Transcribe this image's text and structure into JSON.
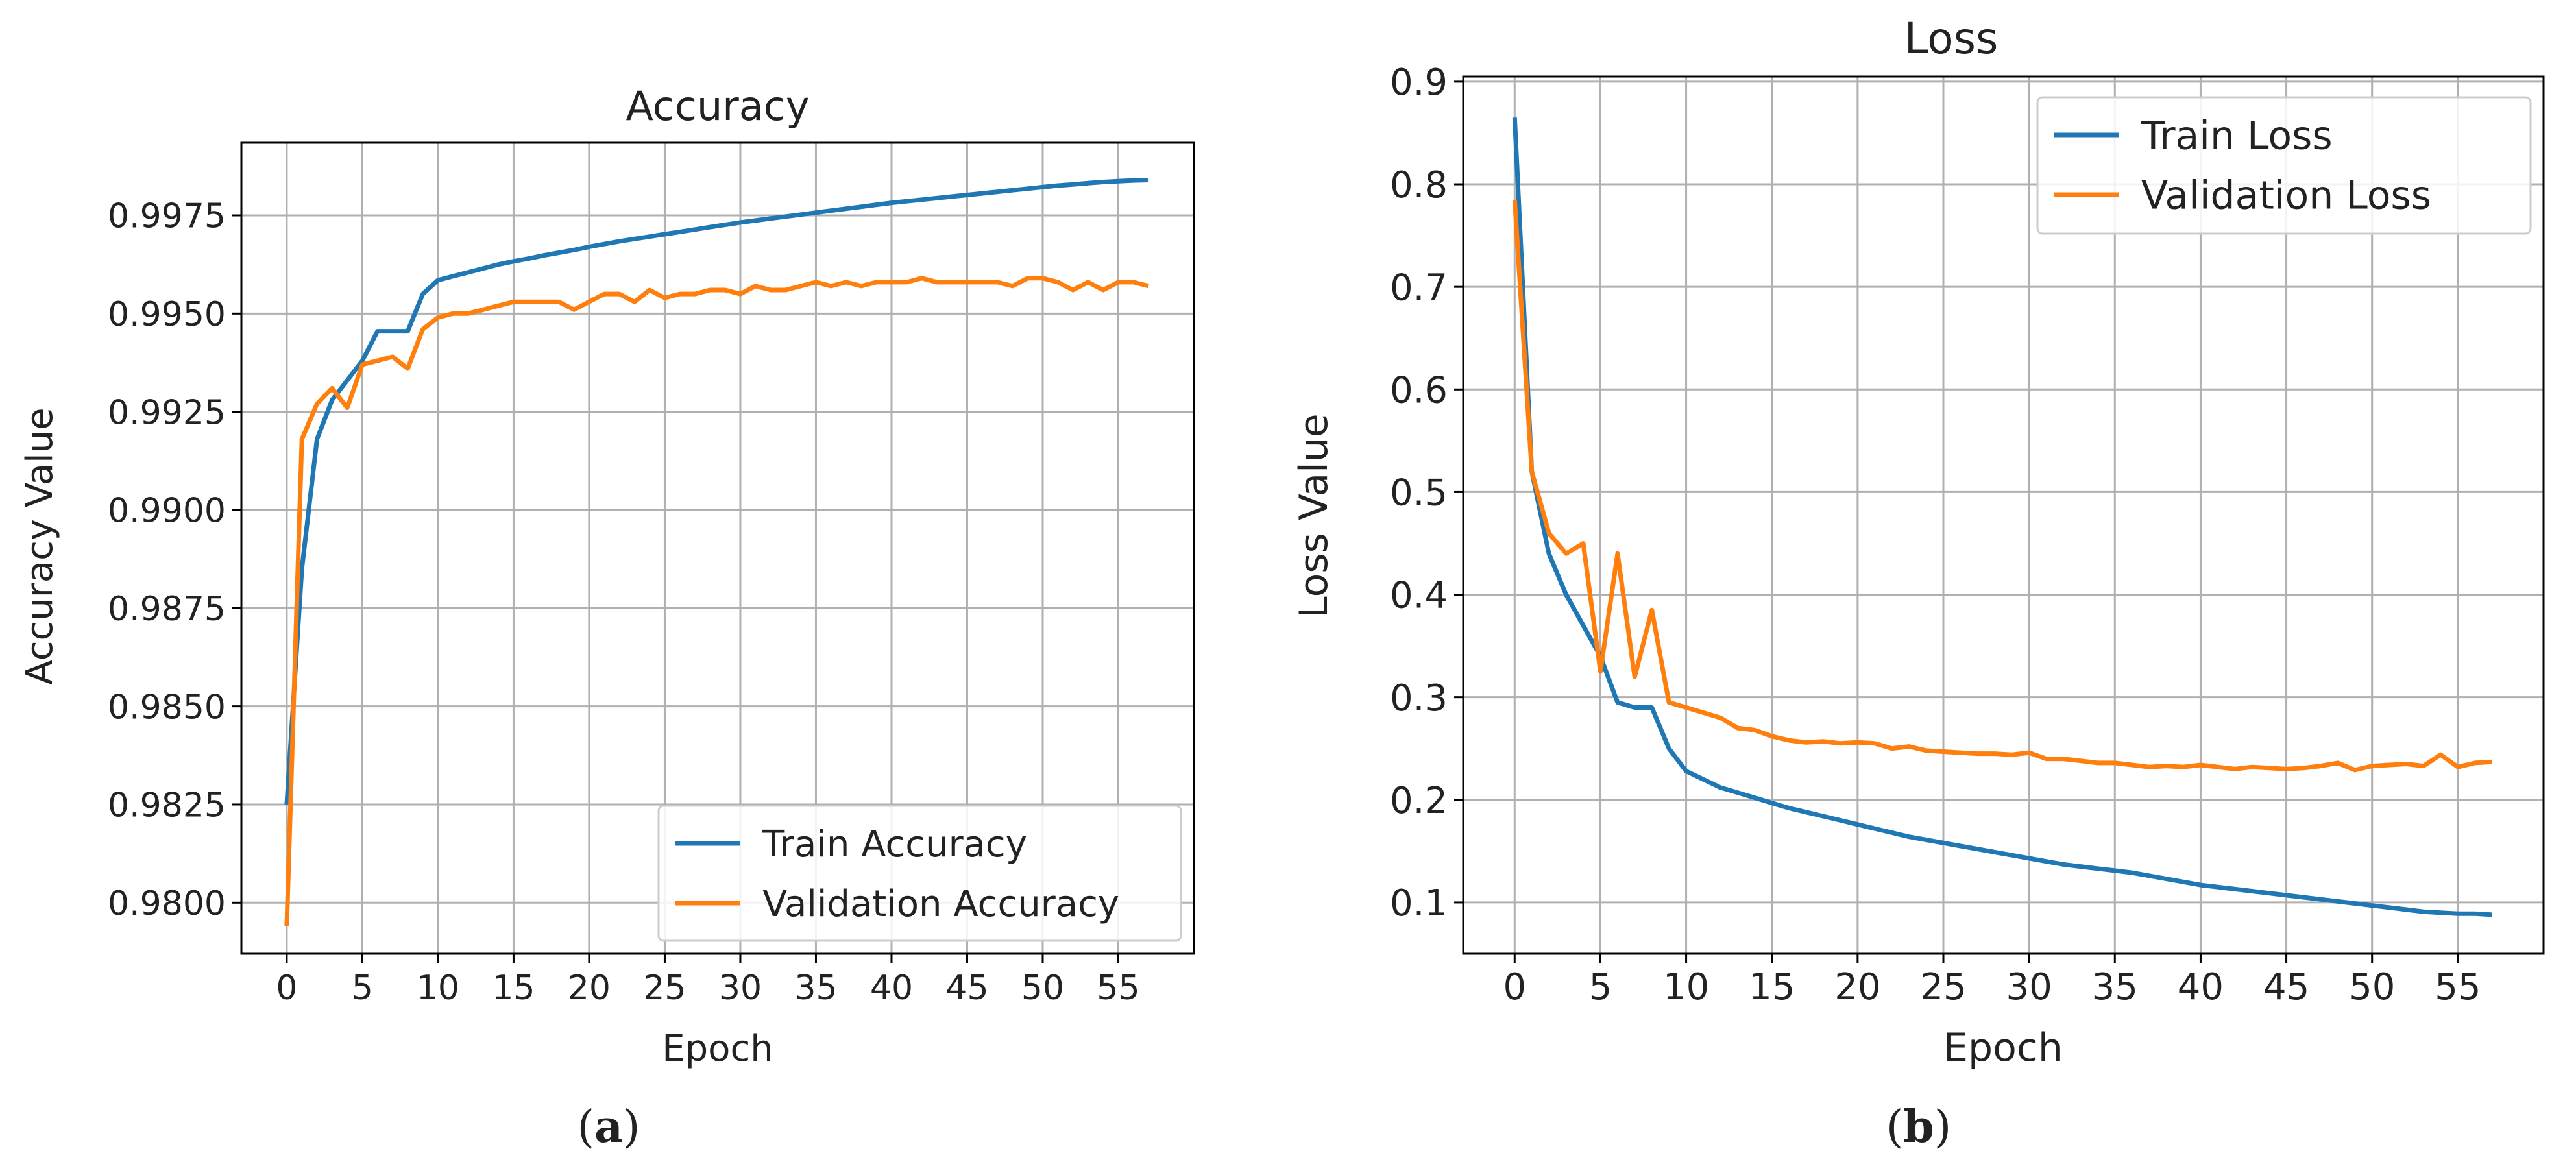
{
  "colors": {
    "train": "#1f77b4",
    "validation": "#ff7f0e",
    "grid": "#b0b0b0",
    "axis": "#000000",
    "legend_border": "#cccccc"
  },
  "chart_data": [
    {
      "type": "line",
      "title": "Accuracy",
      "xlabel": "Epoch",
      "ylabel": "Accuracy Value",
      "caption_letter": "a",
      "xlim": [
        -3,
        60
      ],
      "ylim": [
        0.9787,
        0.99935
      ],
      "xticks": [
        0,
        5,
        10,
        15,
        20,
        25,
        30,
        35,
        40,
        45,
        50,
        55
      ],
      "yticks": [
        0.98,
        0.9825,
        0.985,
        0.9875,
        0.99,
        0.9925,
        0.995,
        0.9975
      ],
      "ytick_labels": [
        "0.9800",
        "0.9825",
        "0.9850",
        "0.9875",
        "0.9900",
        "0.9925",
        "0.9950",
        "0.9975"
      ],
      "grid": true,
      "legend_position": "lower-right",
      "series": [
        {
          "name": "Train Accuracy",
          "color_key": "train",
          "x": [
            0,
            1,
            2,
            3,
            4,
            5,
            6,
            7,
            8,
            9,
            10,
            11,
            12,
            13,
            14,
            15,
            16,
            17,
            18,
            19,
            20,
            21,
            22,
            23,
            24,
            25,
            26,
            27,
            28,
            29,
            30,
            31,
            32,
            33,
            34,
            35,
            36,
            37,
            38,
            39,
            40,
            41,
            42,
            43,
            44,
            45,
            46,
            47,
            48,
            49,
            50,
            51,
            52,
            53,
            54,
            55,
            56,
            57
          ],
          "y": [
            0.9825,
            0.9885,
            0.9918,
            0.9928,
            0.9933,
            0.9938,
            0.99455,
            0.99455,
            0.99455,
            0.9955,
            0.99585,
            0.99595,
            0.99605,
            0.99615,
            0.99625,
            0.99633,
            0.9964,
            0.99648,
            0.99655,
            0.99662,
            0.9967,
            0.99677,
            0.99684,
            0.9969,
            0.99696,
            0.99702,
            0.99708,
            0.99714,
            0.9972,
            0.99726,
            0.99732,
            0.99737,
            0.99742,
            0.99747,
            0.99752,
            0.99757,
            0.99762,
            0.99767,
            0.99772,
            0.99777,
            0.99782,
            0.99786,
            0.9979,
            0.99794,
            0.99798,
            0.99802,
            0.99806,
            0.9981,
            0.99814,
            0.99818,
            0.99822,
            0.99826,
            0.99829,
            0.99832,
            0.99835,
            0.99837,
            0.99839,
            0.9984
          ]
        },
        {
          "name": "Validation Accuracy",
          "color_key": "validation",
          "x": [
            0,
            1,
            2,
            3,
            4,
            5,
            6,
            7,
            8,
            9,
            10,
            11,
            12,
            13,
            14,
            15,
            16,
            17,
            18,
            19,
            20,
            21,
            22,
            23,
            24,
            25,
            26,
            27,
            28,
            29,
            30,
            31,
            32,
            33,
            34,
            35,
            36,
            37,
            38,
            39,
            40,
            41,
            42,
            43,
            44,
            45,
            46,
            47,
            48,
            49,
            50,
            51,
            52,
            53,
            54,
            55,
            56,
            57
          ],
          "y": [
            0.9794,
            0.9918,
            0.9927,
            0.9931,
            0.9926,
            0.9937,
            0.9938,
            0.9939,
            0.9936,
            0.9946,
            0.9949,
            0.995,
            0.995,
            0.9951,
            0.9952,
            0.9953,
            0.9953,
            0.9953,
            0.9953,
            0.9951,
            0.9953,
            0.9955,
            0.9955,
            0.9953,
            0.9956,
            0.9954,
            0.9955,
            0.9955,
            0.9956,
            0.9956,
            0.9955,
            0.9957,
            0.9956,
            0.9956,
            0.9957,
            0.9958,
            0.9957,
            0.9958,
            0.9957,
            0.9958,
            0.9958,
            0.9958,
            0.9959,
            0.9958,
            0.9958,
            0.9958,
            0.9958,
            0.9958,
            0.9957,
            0.9959,
            0.9959,
            0.9958,
            0.9956,
            0.9958,
            0.9956,
            0.9958,
            0.9958,
            0.9957
          ]
        }
      ]
    },
    {
      "type": "line",
      "title": "Loss",
      "xlabel": "Epoch",
      "ylabel": "Loss Value",
      "caption_letter": "b",
      "xlim": [
        -3,
        60
      ],
      "ylim": [
        0.05,
        0.905
      ],
      "xticks": [
        0,
        5,
        10,
        15,
        20,
        25,
        30,
        35,
        40,
        45,
        50,
        55
      ],
      "yticks": [
        0.1,
        0.2,
        0.3,
        0.4,
        0.5,
        0.6,
        0.7,
        0.8,
        0.9
      ],
      "ytick_labels": [
        "0.1",
        "0.2",
        "0.3",
        "0.4",
        "0.5",
        "0.6",
        "0.7",
        "0.8",
        "0.9"
      ],
      "grid": true,
      "legend_position": "upper-right",
      "series": [
        {
          "name": "Train Loss",
          "color_key": "train",
          "x": [
            0,
            1,
            2,
            3,
            4,
            5,
            6,
            7,
            8,
            9,
            10,
            11,
            12,
            13,
            14,
            15,
            16,
            17,
            18,
            19,
            20,
            21,
            22,
            23,
            24,
            25,
            26,
            27,
            28,
            29,
            30,
            31,
            32,
            33,
            34,
            35,
            36,
            37,
            38,
            39,
            40,
            41,
            42,
            43,
            44,
            45,
            46,
            47,
            48,
            49,
            50,
            51,
            52,
            53,
            54,
            55,
            56,
            57
          ],
          "y": [
            0.865,
            0.52,
            0.44,
            0.4,
            0.37,
            0.34,
            0.295,
            0.29,
            0.29,
            0.25,
            0.228,
            0.22,
            0.212,
            0.207,
            0.202,
            0.197,
            0.192,
            0.188,
            0.184,
            0.18,
            0.176,
            0.172,
            0.168,
            0.164,
            0.161,
            0.158,
            0.155,
            0.152,
            0.149,
            0.146,
            0.143,
            0.14,
            0.137,
            0.135,
            0.133,
            0.131,
            0.129,
            0.126,
            0.123,
            0.12,
            0.117,
            0.115,
            0.113,
            0.111,
            0.109,
            0.107,
            0.105,
            0.103,
            0.101,
            0.099,
            0.097,
            0.095,
            0.093,
            0.091,
            0.09,
            0.089,
            0.089,
            0.088
          ]
        },
        {
          "name": "Validation Loss",
          "color_key": "validation",
          "x": [
            0,
            1,
            2,
            3,
            4,
            5,
            6,
            7,
            8,
            9,
            10,
            11,
            12,
            13,
            14,
            15,
            16,
            17,
            18,
            19,
            20,
            21,
            22,
            23,
            24,
            25,
            26,
            27,
            28,
            29,
            30,
            31,
            32,
            33,
            34,
            35,
            36,
            37,
            38,
            39,
            40,
            41,
            42,
            43,
            44,
            45,
            46,
            47,
            48,
            49,
            50,
            51,
            52,
            53,
            54,
            55,
            56,
            57
          ],
          "y": [
            0.785,
            0.52,
            0.46,
            0.44,
            0.45,
            0.325,
            0.44,
            0.32,
            0.385,
            0.295,
            0.29,
            0.285,
            0.28,
            0.27,
            0.268,
            0.262,
            0.258,
            0.256,
            0.257,
            0.255,
            0.256,
            0.255,
            0.25,
            0.252,
            0.248,
            0.247,
            0.246,
            0.245,
            0.245,
            0.244,
            0.246,
            0.24,
            0.24,
            0.238,
            0.236,
            0.236,
            0.234,
            0.232,
            0.233,
            0.232,
            0.234,
            0.232,
            0.23,
            0.232,
            0.231,
            0.23,
            0.231,
            0.233,
            0.236,
            0.229,
            0.233,
            0.234,
            0.235,
            0.233,
            0.244,
            0.232,
            0.236,
            0.237
          ]
        }
      ]
    }
  ]
}
